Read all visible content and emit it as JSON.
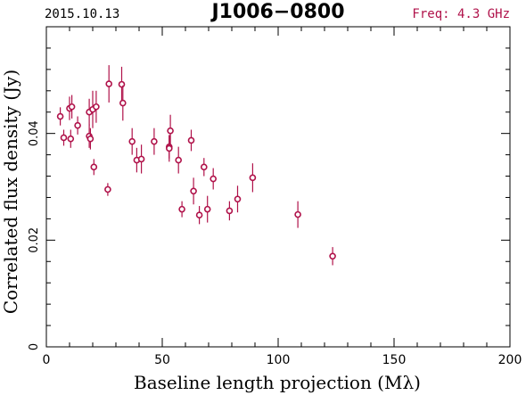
{
  "header": {
    "date": "2015.10.13",
    "source": "J1006−0800",
    "freq": "Freq: 4.3 GHz"
  },
  "colors": {
    "data": "#b0124a",
    "axis": "#000000",
    "freq_text": "#b0124a"
  },
  "chart_data": {
    "type": "scatter",
    "title": "J1006−0800",
    "xlabel": "Baseline length projection (Mλ)",
    "ylabel": "Correlated flux density (Jy)",
    "xlim": [
      0,
      200
    ],
    "ylim": [
      0,
      0.06
    ],
    "x_ticks": [
      0,
      50,
      100,
      150,
      200
    ],
    "x_tick_labels": [
      "0",
      "50",
      "100",
      "150",
      "200"
    ],
    "y_ticks": [
      0,
      0.02,
      0.04
    ],
    "y_tick_labels": [
      "0",
      "0.02",
      "0.04"
    ],
    "grid": false,
    "error_bars": true,
    "points": [
      {
        "x": 6.0,
        "y": 0.0432,
        "err": 0.0017
      },
      {
        "x": 7.5,
        "y": 0.0392,
        "err": 0.0015
      },
      {
        "x": 10.0,
        "y": 0.0447,
        "err": 0.0022
      },
      {
        "x": 10.5,
        "y": 0.039,
        "err": 0.0017
      },
      {
        "x": 11.0,
        "y": 0.045,
        "err": 0.0022
      },
      {
        "x": 13.5,
        "y": 0.0415,
        "err": 0.0017
      },
      {
        "x": 18.5,
        "y": 0.044,
        "err": 0.0025
      },
      {
        "x": 18.5,
        "y": 0.0395,
        "err": 0.0022
      },
      {
        "x": 19.0,
        "y": 0.039,
        "err": 0.002
      },
      {
        "x": 20.0,
        "y": 0.0445,
        "err": 0.0035
      },
      {
        "x": 20.5,
        "y": 0.0337,
        "err": 0.0015
      },
      {
        "x": 21.5,
        "y": 0.045,
        "err": 0.003
      },
      {
        "x": 26.5,
        "y": 0.0295,
        "err": 0.0012
      },
      {
        "x": 27.0,
        "y": 0.0493,
        "err": 0.0035
      },
      {
        "x": 32.5,
        "y": 0.0492,
        "err": 0.0033
      },
      {
        "x": 33.0,
        "y": 0.0457,
        "err": 0.0033
      },
      {
        "x": 37.0,
        "y": 0.0385,
        "err": 0.0025
      },
      {
        "x": 39.0,
        "y": 0.035,
        "err": 0.0023
      },
      {
        "x": 41.0,
        "y": 0.0352,
        "err": 0.0027
      },
      {
        "x": 46.5,
        "y": 0.0385,
        "err": 0.0025
      },
      {
        "x": 53.0,
        "y": 0.0375,
        "err": 0.0022
      },
      {
        "x": 53.0,
        "y": 0.0372,
        "err": 0.0025
      },
      {
        "x": 53.5,
        "y": 0.0405,
        "err": 0.003
      },
      {
        "x": 57.0,
        "y": 0.035,
        "err": 0.0025
      },
      {
        "x": 58.5,
        "y": 0.0258,
        "err": 0.0015
      },
      {
        "x": 62.5,
        "y": 0.0387,
        "err": 0.002
      },
      {
        "x": 63.5,
        "y": 0.0292,
        "err": 0.0025
      },
      {
        "x": 66.0,
        "y": 0.0247,
        "err": 0.0017
      },
      {
        "x": 68.0,
        "y": 0.0337,
        "err": 0.0017
      },
      {
        "x": 69.5,
        "y": 0.0258,
        "err": 0.0025
      },
      {
        "x": 72.0,
        "y": 0.0315,
        "err": 0.002
      },
      {
        "x": 79.0,
        "y": 0.0255,
        "err": 0.0018
      },
      {
        "x": 82.5,
        "y": 0.0277,
        "err": 0.0025
      },
      {
        "x": 89.0,
        "y": 0.0317,
        "err": 0.0027
      },
      {
        "x": 108.5,
        "y": 0.0248,
        "err": 0.0025
      },
      {
        "x": 123.5,
        "y": 0.017,
        "err": 0.0017
      }
    ]
  }
}
